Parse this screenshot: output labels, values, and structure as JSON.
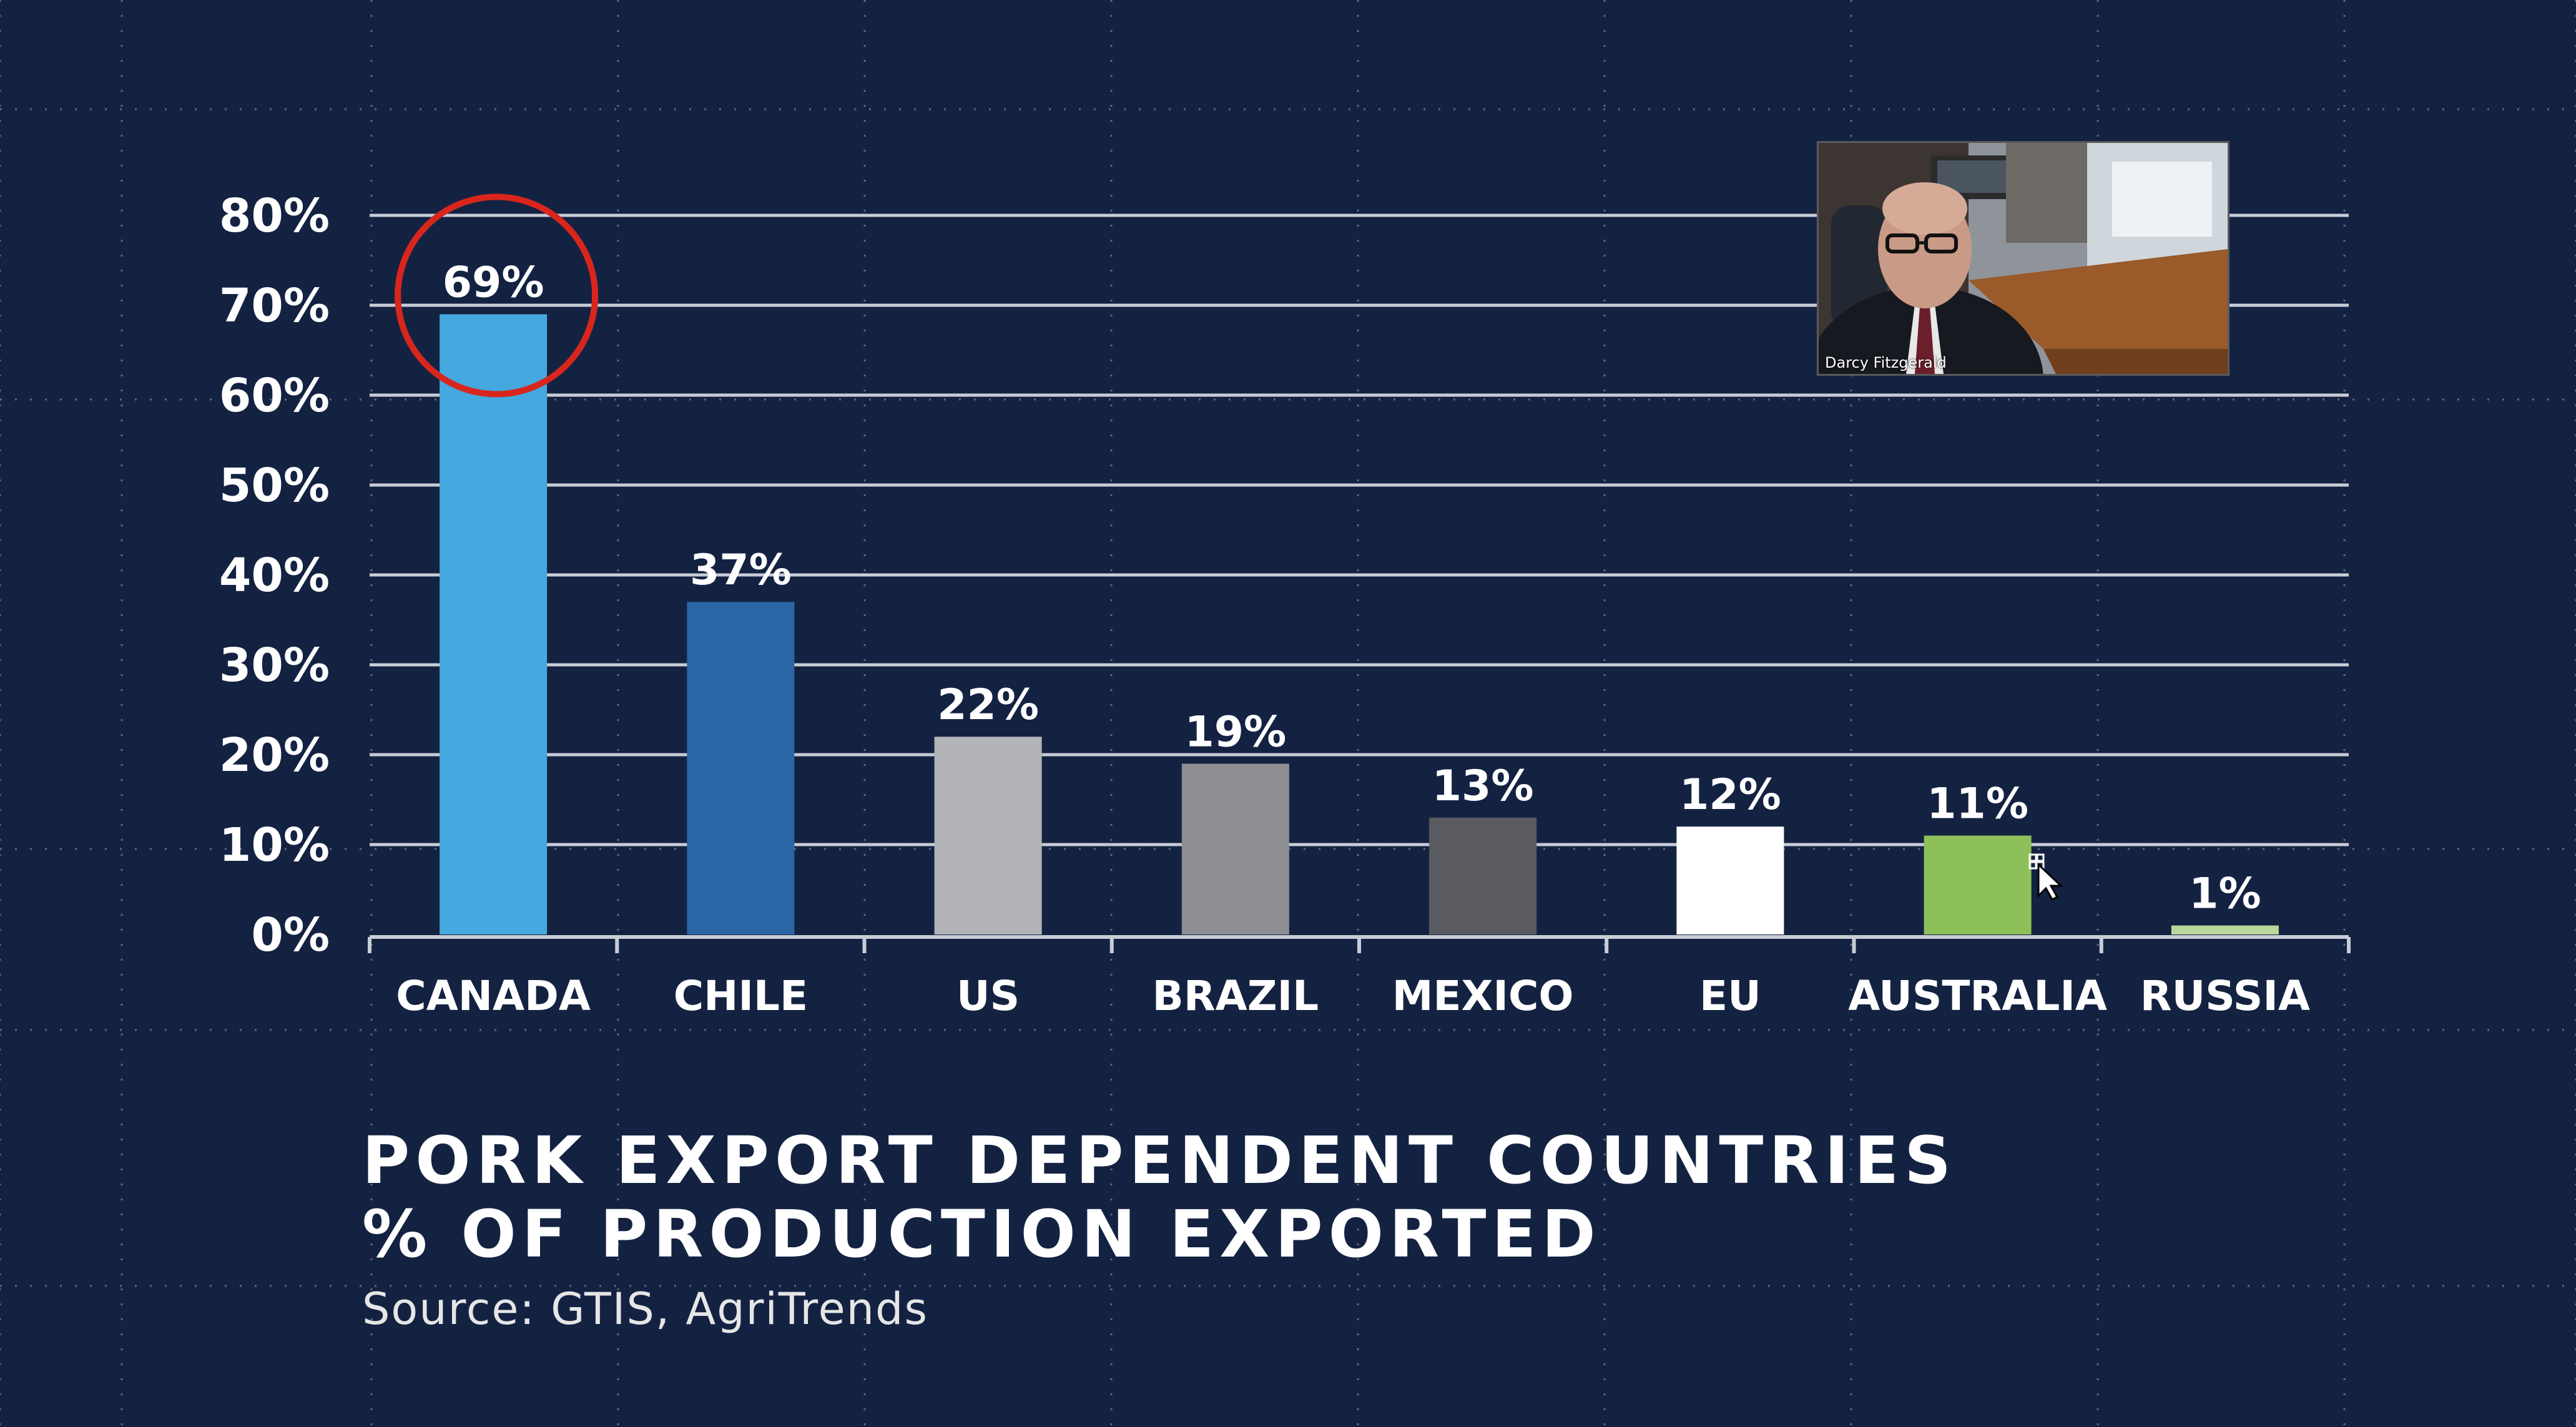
{
  "colors": {
    "background": "#142242",
    "gridline": "#c7ccd6",
    "text": "#ffffff",
    "highlight_circle": "#d9261c"
  },
  "chart_data": {
    "type": "bar",
    "title": "PORK EXPORT DEPENDENT COUNTRIES",
    "subtitle": "% OF PRODUCTION EXPORTED",
    "xlabel": "",
    "ylabel": "",
    "ylim": [
      0,
      80
    ],
    "yticks": [
      0,
      10,
      20,
      30,
      40,
      50,
      60,
      70,
      80
    ],
    "ytick_labels": [
      "0%",
      "10%",
      "20%",
      "30%",
      "40%",
      "50%",
      "60%",
      "70%",
      "80%"
    ],
    "grid": true,
    "categories": [
      "CANADA",
      "CHILE",
      "US",
      "BRAZIL",
      "MEXICO",
      "EU",
      "AUSTRALIA",
      "RUSSIA"
    ],
    "values": [
      69,
      37,
      22,
      19,
      13,
      12,
      11,
      1
    ],
    "value_labels": [
      "69%",
      "37%",
      "22%",
      "19%",
      "13%",
      "12%",
      "11%",
      "1%"
    ],
    "bar_colors": [
      "#45a8de",
      "#2a65a6",
      "#b2b4b8",
      "#8d8e93",
      "#5a5b60",
      "#ffffff",
      "#8ec05a",
      "#b9d99a"
    ],
    "highlighted_category": "CANADA"
  },
  "header": {
    "title": "PORK EXPORT DEPENDENT COUNTRIES",
    "subtitle": "% OF PRODUCTION EXPORTED",
    "source": "Source: GTIS, AgriTrends"
  },
  "video": {
    "participant_name": "Darcy Fitzgerald"
  }
}
